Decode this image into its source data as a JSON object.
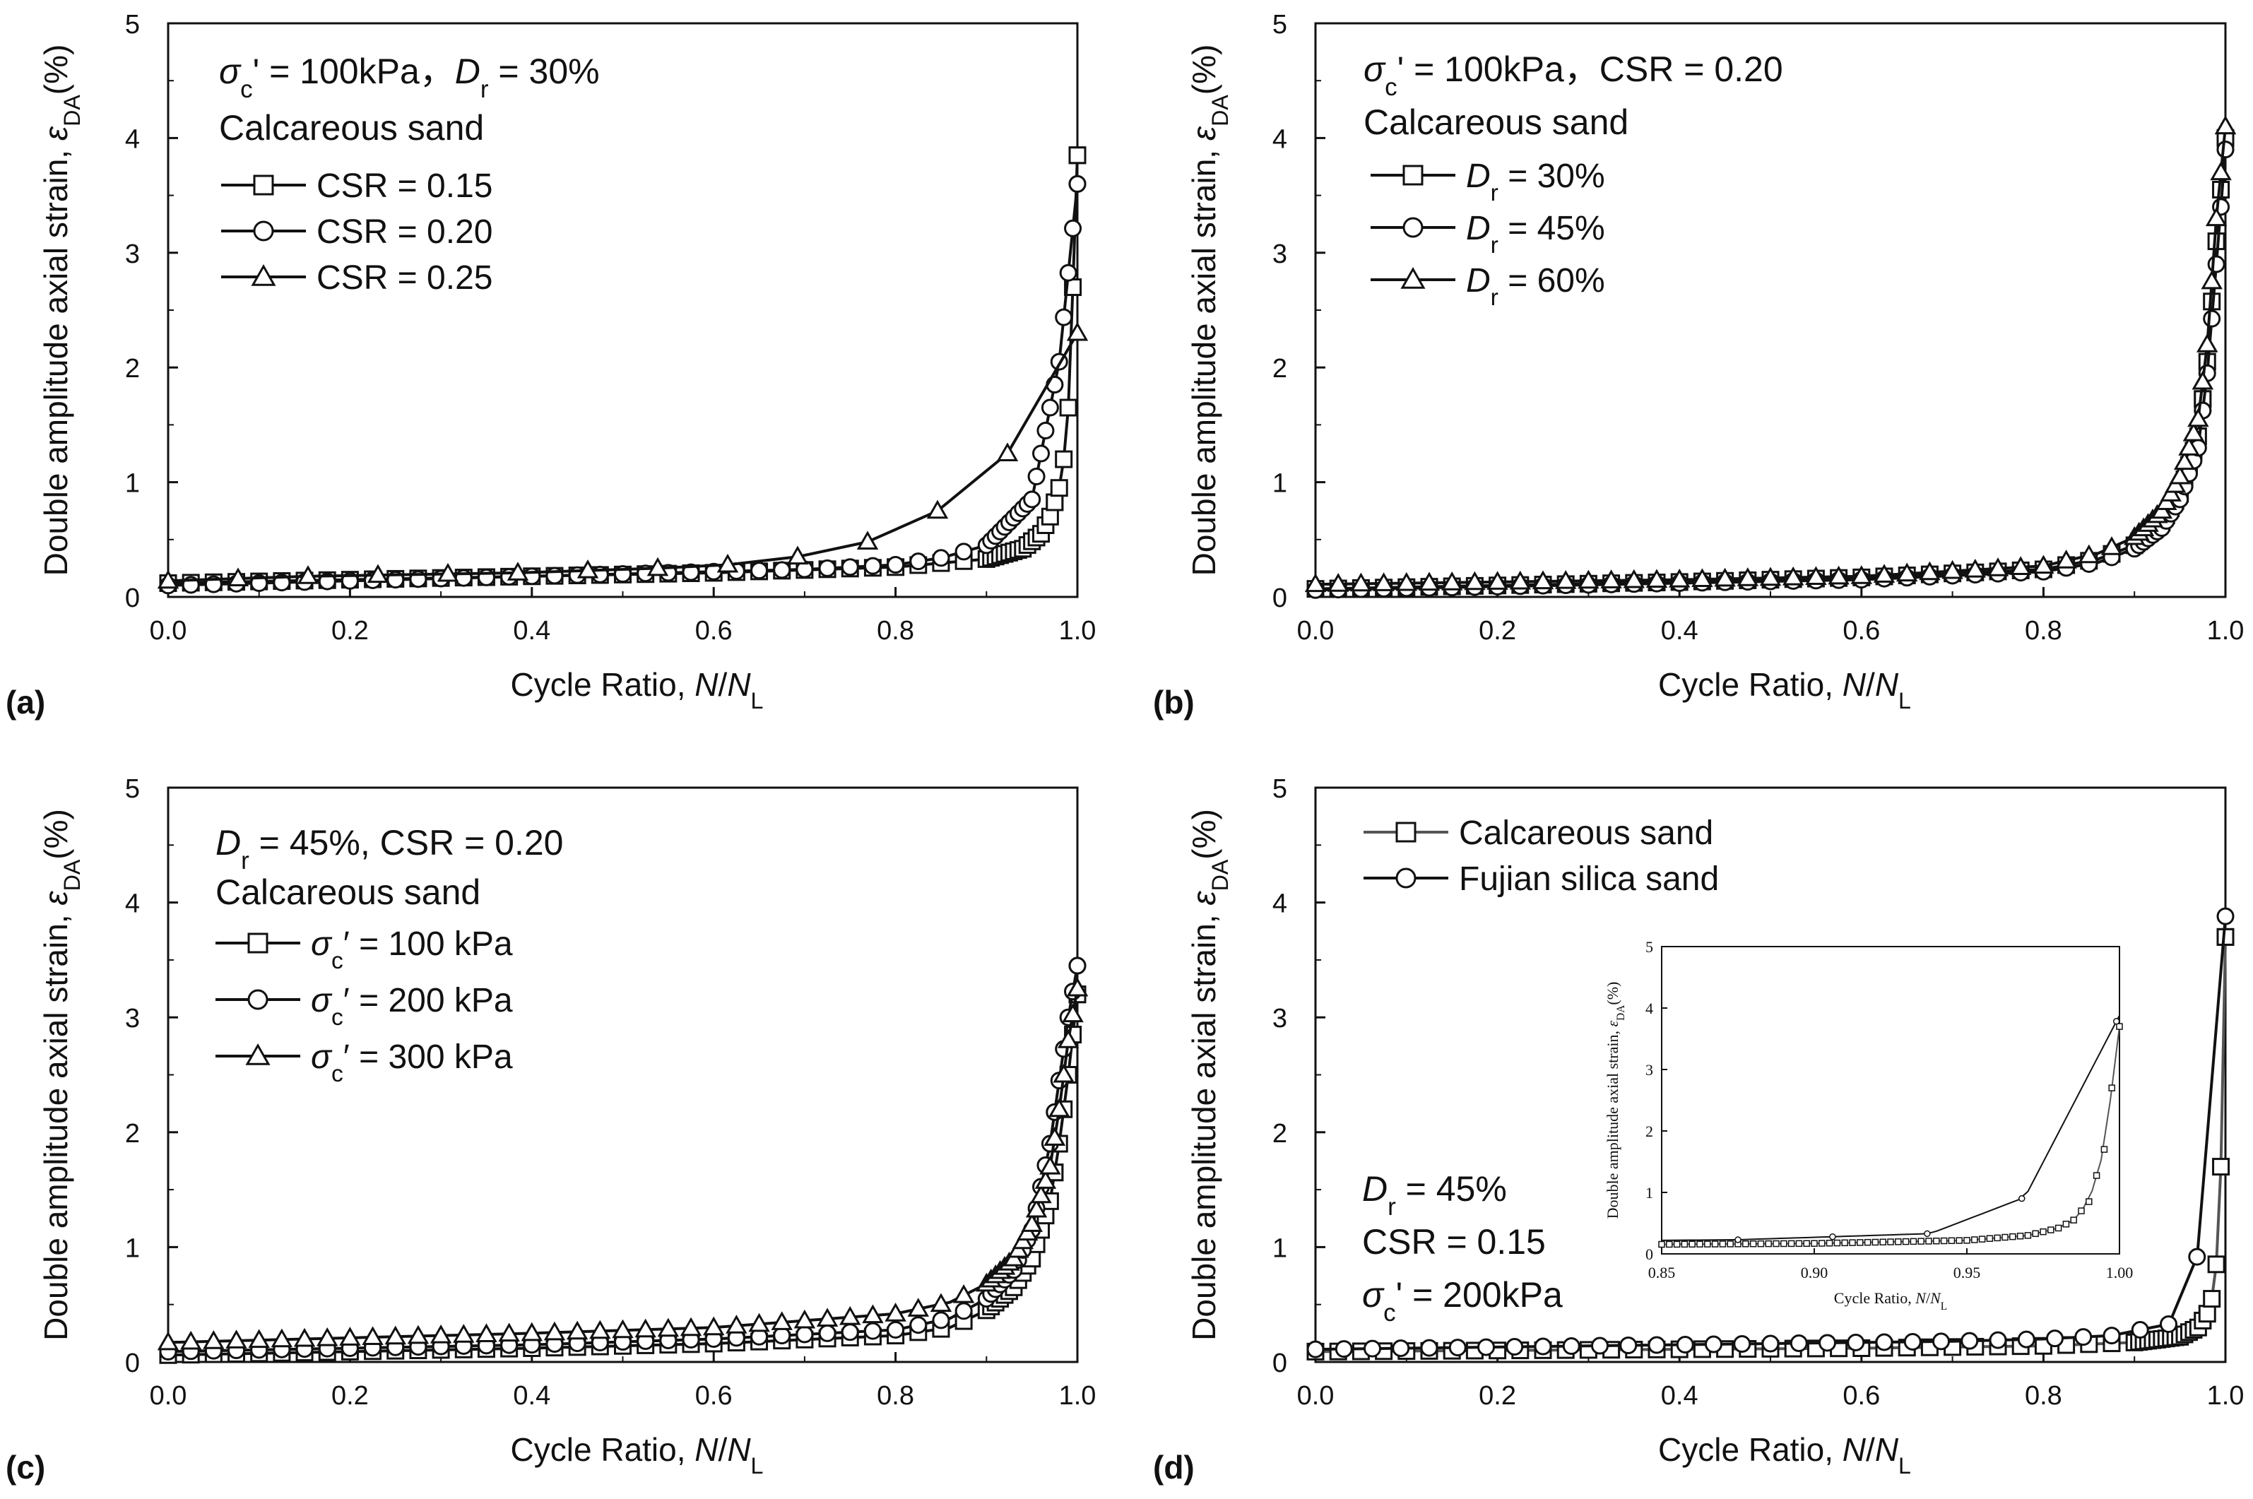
{
  "figure": {
    "ylabel": "Double amplitude axial  strain, εDA(%)",
    "xlabel": "Cycle Ratio, N/NL"
  },
  "chart_data": [
    {
      "panel": "(a)",
      "type": "line",
      "xlim": [
        0,
        1
      ],
      "ylim": [
        0,
        5
      ],
      "xticks": [
        "0.0",
        "0.2",
        "0.4",
        "0.6",
        "0.8",
        "1.0"
      ],
      "yticks": [
        "0",
        "1",
        "2",
        "3",
        "4",
        "5"
      ],
      "xlabel": "Cycle Ratio, N/NL",
      "ylabel": "Double amplitude axial  strain, εDA(%)",
      "annotations": [
        "σc' = 100kPa，Dr = 30%",
        "Calcareous sand"
      ],
      "series": [
        {
          "name": "CSR = 0.15",
          "marker": "square",
          "color": "#111111",
          "x": [
            0,
            0.2,
            0.4,
            0.6,
            0.8,
            0.9,
            0.94,
            0.96,
            0.97,
            0.98,
            0.985,
            0.99,
            0.995,
            1.0
          ],
          "y": [
            0.12,
            0.15,
            0.18,
            0.21,
            0.26,
            0.33,
            0.42,
            0.55,
            0.7,
            0.95,
            1.2,
            1.65,
            2.7,
            3.85
          ]
        },
        {
          "name": "CSR = 0.20",
          "marker": "circle",
          "color": "#111111",
          "x": [
            0,
            0.1,
            0.2,
            0.3,
            0.4,
            0.5,
            0.6,
            0.7,
            0.8,
            0.85,
            0.9,
            0.95,
            0.98,
            1.0
          ],
          "y": [
            0.1,
            0.12,
            0.14,
            0.16,
            0.18,
            0.2,
            0.22,
            0.24,
            0.28,
            0.34,
            0.45,
            0.85,
            2.05,
            3.6
          ]
        },
        {
          "name": "CSR = 0.25",
          "marker": "triangle",
          "color": "#111111",
          "x": [
            0,
            0.0769,
            0.1538,
            0.2308,
            0.3077,
            0.3846,
            0.4615,
            0.5385,
            0.6154,
            0.6923,
            0.7692,
            0.8462,
            0.9231,
            1.0
          ],
          "y": [
            0.14,
            0.16,
            0.18,
            0.19,
            0.2,
            0.21,
            0.23,
            0.25,
            0.28,
            0.35,
            0.48,
            0.75,
            1.25,
            2.3
          ]
        }
      ]
    },
    {
      "panel": "(b)",
      "type": "line",
      "xlim": [
        0,
        1
      ],
      "ylim": [
        0,
        5
      ],
      "xticks": [
        "0.0",
        "0.2",
        "0.4",
        "0.6",
        "0.8",
        "1.0"
      ],
      "yticks": [
        "0",
        "1",
        "2",
        "3",
        "4",
        "5"
      ],
      "xlabel": "Cycle Ratio, N/NL",
      "ylabel": "Double amplitude axial  strain, εDA(%)",
      "annotations": [
        "σc' = 100kPa，CSR = 0.20",
        "Calcareous sand"
      ],
      "series": [
        {
          "name": "Dr = 30%",
          "marker": "square",
          "color": "#111111",
          "x": [
            0,
            0.2,
            0.4,
            0.6,
            0.8,
            0.86,
            0.9,
            0.93,
            0.95,
            0.97,
            0.98,
            0.99,
            1.0
          ],
          "y": [
            0.07,
            0.1,
            0.13,
            0.17,
            0.24,
            0.33,
            0.45,
            0.65,
            0.9,
            1.4,
            2.05,
            3.1,
            4.0
          ]
        },
        {
          "name": "Dr = 45%",
          "marker": "circle",
          "color": "#111111",
          "x": [
            0,
            0.2,
            0.4,
            0.6,
            0.8,
            0.86,
            0.9,
            0.93,
            0.95,
            0.97,
            0.98,
            0.99,
            1.0
          ],
          "y": [
            0.06,
            0.09,
            0.12,
            0.15,
            0.22,
            0.3,
            0.42,
            0.6,
            0.85,
            1.3,
            1.95,
            2.9,
            3.9
          ]
        },
        {
          "name": "Dr = 60%",
          "marker": "triangle",
          "color": "#111111",
          "x": [
            0,
            0.2,
            0.4,
            0.6,
            0.8,
            0.86,
            0.9,
            0.93,
            0.95,
            0.97,
            0.98,
            0.99,
            1.0
          ],
          "y": [
            0.11,
            0.13,
            0.15,
            0.18,
            0.27,
            0.38,
            0.52,
            0.75,
            1.05,
            1.55,
            2.2,
            3.3,
            4.1
          ]
        }
      ]
    },
    {
      "panel": "(c)",
      "type": "line",
      "xlim": [
        0,
        1
      ],
      "ylim": [
        0,
        5
      ],
      "xticks": [
        "0.0",
        "0.2",
        "0.4",
        "0.6",
        "0.8",
        "1.0"
      ],
      "yticks": [
        "0",
        "1",
        "2",
        "3",
        "4",
        "5"
      ],
      "xlabel": "Cycle Ratio, N/NL",
      "ylabel": "Double amplitude axial  strain, εDA(%)",
      "annotations": [
        "Dr = 45%, CSR = 0.20",
        "Calcareous sand"
      ],
      "series": [
        {
          "name": "σc′ = 100 kPa",
          "marker": "square",
          "color": "#111111",
          "x": [
            0,
            0.2,
            0.4,
            0.6,
            0.8,
            0.86,
            0.9,
            0.93,
            0.95,
            0.97,
            0.98,
            0.99,
            1.0
          ],
          "y": [
            0.06,
            0.09,
            0.12,
            0.16,
            0.23,
            0.3,
            0.45,
            0.65,
            0.9,
            1.4,
            1.9,
            2.5,
            3.2
          ]
        },
        {
          "name": "σc′ = 200 kPa",
          "marker": "circle",
          "color": "#111111",
          "x": [
            0,
            0.2,
            0.4,
            0.6,
            0.8,
            0.86,
            0.9,
            0.93,
            0.95,
            0.97,
            0.98,
            0.99,
            1.0
          ],
          "y": [
            0.09,
            0.12,
            0.15,
            0.2,
            0.28,
            0.38,
            0.55,
            0.8,
            1.15,
            1.9,
            2.45,
            3.0,
            3.45
          ]
        },
        {
          "name": "σc′ = 300 kPa",
          "marker": "triangle",
          "color": "#111111",
          "x": [
            0,
            0.2,
            0.4,
            0.6,
            0.8,
            0.86,
            0.9,
            0.93,
            0.95,
            0.97,
            0.98,
            0.99,
            1.0
          ],
          "y": [
            0.17,
            0.21,
            0.25,
            0.3,
            0.42,
            0.52,
            0.68,
            0.9,
            1.2,
            1.7,
            2.2,
            2.8,
            3.25
          ]
        }
      ]
    },
    {
      "panel": "(d)",
      "type": "line",
      "xlim": [
        0,
        1
      ],
      "ylim": [
        0,
        5
      ],
      "xticks": [
        "0.0",
        "0.2",
        "0.4",
        "0.6",
        "0.8",
        "1.0"
      ],
      "yticks": [
        "0",
        "1",
        "2",
        "3",
        "4",
        "5"
      ],
      "xlabel": "Cycle Ratio, N/NL",
      "ylabel": "Double amplitude axial  strain, εDA(%)",
      "annotations": [
        "Dr = 45%",
        "CSR = 0.15",
        "σc' = 200kPa"
      ],
      "series": [
        {
          "name": "Calcareous sand",
          "marker": "square",
          "color": "#555555",
          "x": [
            0,
            0.2,
            0.4,
            0.6,
            0.8,
            0.9,
            0.95,
            0.97,
            0.98,
            0.985,
            0.99,
            0.995,
            1.0
          ],
          "y": [
            0.09,
            0.1,
            0.11,
            0.12,
            0.14,
            0.17,
            0.22,
            0.3,
            0.42,
            0.55,
            0.85,
            1.7,
            3.7
          ]
        },
        {
          "name": "Fujian silica sand",
          "marker": "circle",
          "color": "#111111",
          "x": [
            0,
            0.1,
            0.2,
            0.3,
            0.4,
            0.5,
            0.6,
            0.7,
            0.8,
            0.875,
            0.938,
            0.969,
            1.0
          ],
          "y": [
            0.11,
            0.12,
            0.13,
            0.14,
            0.15,
            0.16,
            0.17,
            0.18,
            0.2,
            0.23,
            0.33,
            0.92,
            3.88
          ]
        }
      ],
      "inset": {
        "xlim": [
          0.85,
          1.0
        ],
        "ylim": [
          0,
          5
        ],
        "xticks": [
          "0.85",
          "0.90",
          "0.95",
          "1.00"
        ],
        "yticks": [
          "0",
          "1",
          "2",
          "3",
          "4",
          "5"
        ],
        "xlabel": "Cycle Ratio, N/NL",
        "ylabel": "Double amplitude axial  strain, εDA(%)"
      }
    }
  ],
  "panel_labels": [
    "(a)",
    "(b)",
    "(c)",
    "(d)"
  ]
}
